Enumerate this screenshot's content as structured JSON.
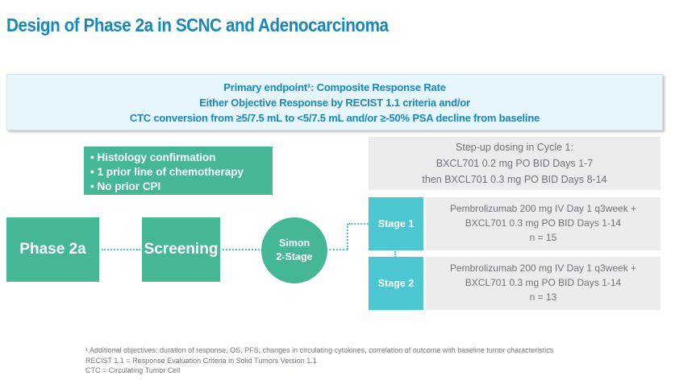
{
  "title": "Design of Phase 2a in SCNC and Adenocarcinoma",
  "colors": {
    "title_blue": "#1787BE",
    "endpoint_bg": "#E7F6FC",
    "green": "#45B797",
    "cyan": "#4CC7D2",
    "gray_box": "#ECECEE",
    "gray_text": "#72727C"
  },
  "endpoint_box": {
    "lines": [
      "Primary endpoint¹: Composite Response Rate",
      "Either Objective Response by RECIST 1.1 criteria and/or",
      "CTC conversion from ≥5/7.5 mL to <5/7.5 mL and/or ≥-50% PSA decline from baseline"
    ]
  },
  "criteria_box": {
    "bullets": [
      "• Histology confirmation",
      "• 1 prior line of chemotherapy",
      "• No prior CPI"
    ]
  },
  "stepup_box": {
    "lines": [
      "Step-up dosing in Cycle 1:",
      "BXCL701 0.2 mg PO BID Days 1-7",
      "then BXCL701 0.3 mg PO BID Days 8-14"
    ]
  },
  "flow": {
    "phase_label": "Phase 2a",
    "screening_label": "Screening",
    "simon_line1": "Simon",
    "simon_line2": "2-Stage"
  },
  "stages": [
    {
      "label": "Stage 1",
      "lines": [
        "Pembrolizumab 200 mg IV Day 1 q3week +",
        "BXCL701 0.3 mg PO BID Days 1-14",
        "n = 15"
      ]
    },
    {
      "label": "Stage 2",
      "lines": [
        "Pembrolizumab 200 mg IV Day 1 q3week +",
        "BXCL701 0.3 mg PO BID Days 1-14",
        "n = 13"
      ]
    }
  ],
  "footnotes": [
    "¹ Additional objectives: duration of response, OS, PFS, changes in circulating cytokines, correlation of outcome with baseline tumor characteristics",
    "RECIST 1.1 = Response Evaluation Criteria in Solid Tumors Version 1.1",
    "CTC = Circulating Tumor Cell"
  ]
}
